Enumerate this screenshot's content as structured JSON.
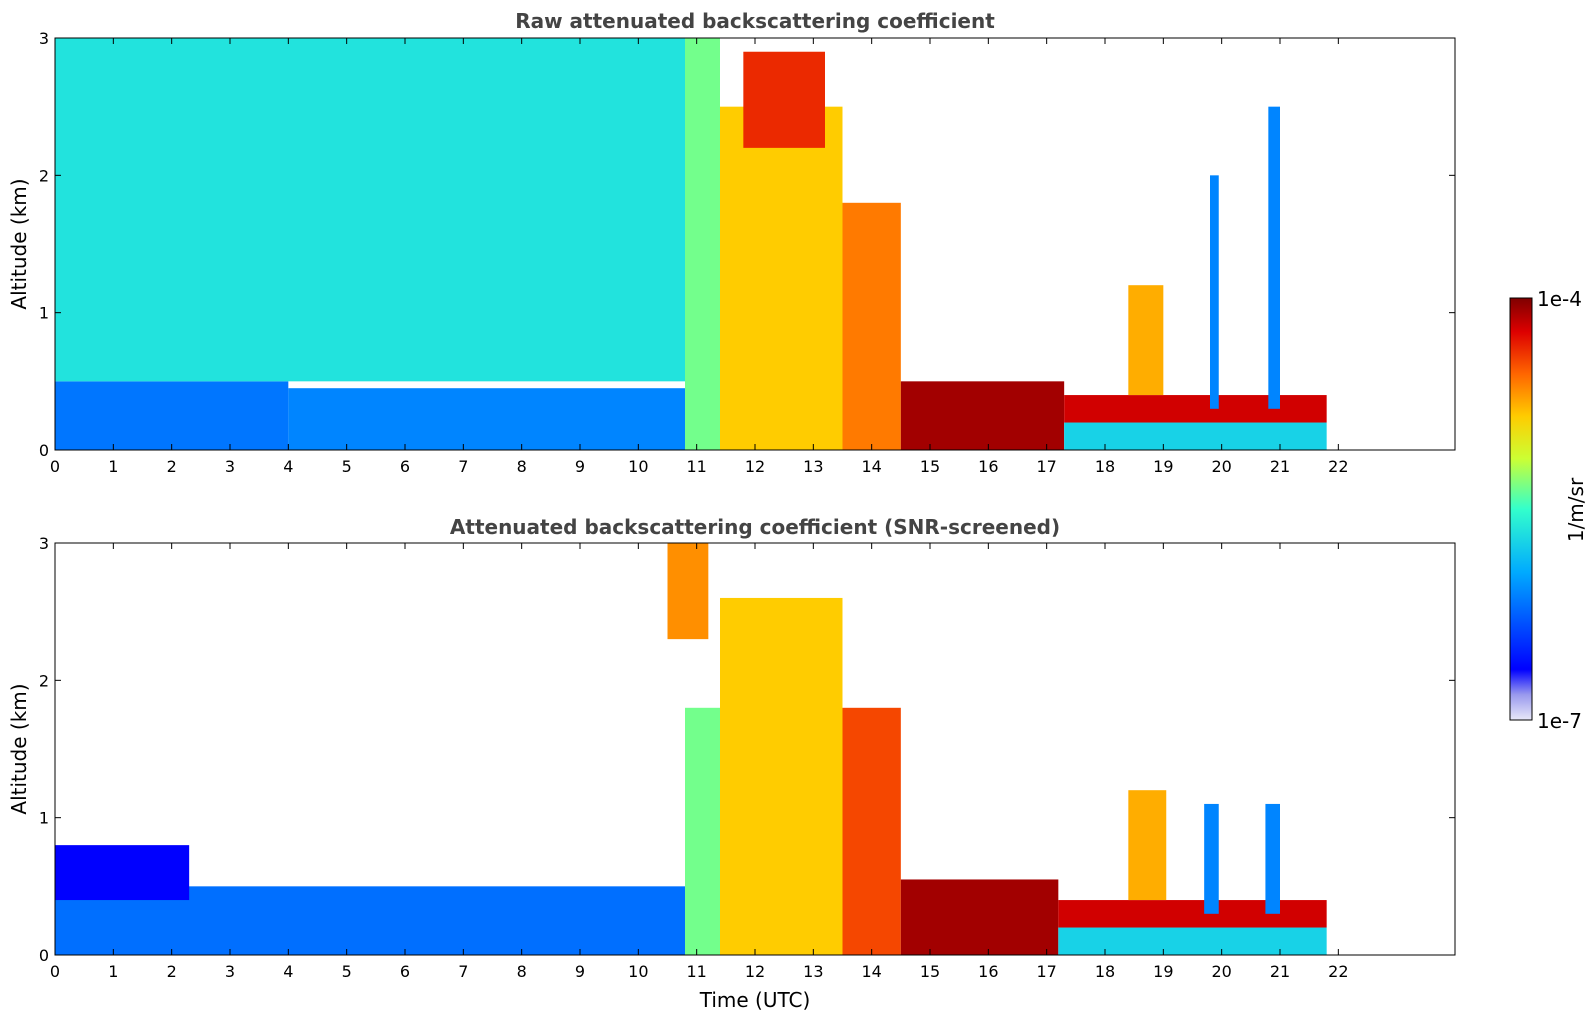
{
  "chart_data": [
    {
      "type": "heatmap",
      "title": "Raw attenuated backscattering coefficient",
      "xlabel": "",
      "ylabel": "Altitude (km)",
      "xlim": [
        0,
        24
      ],
      "ylim": [
        0,
        3
      ],
      "x_ticks": [
        "0",
        "1",
        "2",
        "3",
        "4",
        "5",
        "6",
        "7",
        "8",
        "9",
        "10",
        "11",
        "12",
        "13",
        "14",
        "15",
        "16",
        "17",
        "18",
        "19",
        "20",
        "21",
        "22"
      ],
      "y_ticks": [
        "0",
        "1",
        "2",
        "3"
      ],
      "x_tick_values": [
        0,
        1,
        2,
        3,
        4,
        5,
        6,
        7,
        8,
        9,
        10,
        11,
        12,
        13,
        14,
        15,
        16,
        17,
        18,
        19,
        20,
        21,
        22
      ],
      "y_tick_values": [
        0,
        1,
        2,
        3
      ],
      "data_end_hour": 21.8,
      "features": [
        {
          "t0": 0.0,
          "t1": 4.0,
          "z0": 0.0,
          "z1": 0.5,
          "level": 0.28
        },
        {
          "t0": 4.0,
          "t1": 10.8,
          "z0": 0.0,
          "z1": 0.45,
          "level": 0.3
        },
        {
          "t0": 0.0,
          "t1": 10.8,
          "z0": 0.5,
          "z1": 3.0,
          "level": 0.45
        },
        {
          "t0": 10.8,
          "t1": 11.4,
          "z0": 0.0,
          "z1": 3.0,
          "level": 0.55
        },
        {
          "t0": 11.4,
          "t1": 13.5,
          "z0": 0.0,
          "z1": 2.5,
          "level": 0.72
        },
        {
          "t0": 11.8,
          "t1": 13.2,
          "z0": 2.2,
          "z1": 2.9,
          "level": 0.88
        },
        {
          "t0": 13.5,
          "t1": 14.5,
          "z0": 0.0,
          "z1": 1.8,
          "level": 0.8
        },
        {
          "t0": 14.5,
          "t1": 17.3,
          "z0": 0.0,
          "z1": 0.5,
          "level": 0.97
        },
        {
          "t0": 17.3,
          "t1": 21.8,
          "z0": 0.0,
          "z1": 0.2,
          "level": 0.42
        },
        {
          "t0": 17.3,
          "t1": 21.8,
          "z0": 0.2,
          "z1": 0.4,
          "level": 0.93
        },
        {
          "t0": 18.4,
          "t1": 19.0,
          "z0": 0.4,
          "z1": 1.2,
          "level": 0.75
        },
        {
          "t0": 19.8,
          "t1": 19.95,
          "z0": 0.3,
          "z1": 2.0,
          "level": 0.3
        },
        {
          "t0": 20.8,
          "t1": 21.0,
          "z0": 0.3,
          "z1": 2.5,
          "level": 0.3
        }
      ]
    },
    {
      "type": "heatmap",
      "title": "Attenuated backscattering coefficient (SNR-screened)",
      "xlabel": "Time (UTC)",
      "ylabel": "Altitude (km)",
      "xlim": [
        0,
        24
      ],
      "ylim": [
        0,
        3
      ],
      "x_ticks": [
        "0",
        "1",
        "2",
        "3",
        "4",
        "5",
        "6",
        "7",
        "8",
        "9",
        "10",
        "11",
        "12",
        "13",
        "14",
        "15",
        "16",
        "17",
        "18",
        "19",
        "20",
        "21",
        "22"
      ],
      "y_ticks": [
        "0",
        "1",
        "2",
        "3"
      ],
      "x_tick_values": [
        0,
        1,
        2,
        3,
        4,
        5,
        6,
        7,
        8,
        9,
        10,
        11,
        12,
        13,
        14,
        15,
        16,
        17,
        18,
        19,
        20,
        21,
        22
      ],
      "y_tick_values": [
        0,
        1,
        2,
        3
      ],
      "data_end_hour": 21.8,
      "features": [
        {
          "t0": 0.0,
          "t1": 10.8,
          "z0": 0.0,
          "z1": 0.5,
          "level": 0.27
        },
        {
          "t0": 0.0,
          "t1": 2.3,
          "z0": 0.4,
          "z1": 0.8,
          "level": 0.12
        },
        {
          "t0": 10.8,
          "t1": 11.4,
          "z0": 0.0,
          "z1": 1.8,
          "level": 0.55
        },
        {
          "t0": 11.4,
          "t1": 13.5,
          "z0": 0.0,
          "z1": 2.6,
          "level": 0.72
        },
        {
          "t0": 10.5,
          "t1": 11.2,
          "z0": 2.3,
          "z1": 3.0,
          "level": 0.78
        },
        {
          "t0": 13.5,
          "t1": 14.5,
          "z0": 0.0,
          "z1": 1.8,
          "level": 0.85
        },
        {
          "t0": 14.5,
          "t1": 17.2,
          "z0": 0.0,
          "z1": 0.55,
          "level": 0.97
        },
        {
          "t0": 17.2,
          "t1": 21.8,
          "z0": 0.0,
          "z1": 0.2,
          "level": 0.42
        },
        {
          "t0": 17.2,
          "t1": 21.8,
          "z0": 0.2,
          "z1": 0.4,
          "level": 0.93
        },
        {
          "t0": 18.4,
          "t1": 19.05,
          "z0": 0.4,
          "z1": 1.2,
          "level": 0.75
        },
        {
          "t0": 19.7,
          "t1": 19.95,
          "z0": 0.3,
          "z1": 1.1,
          "level": 0.3
        },
        {
          "t0": 20.75,
          "t1": 21.0,
          "z0": 0.3,
          "z1": 1.1,
          "level": 0.3
        }
      ]
    }
  ],
  "colorbar": {
    "label": "1/m/sr",
    "max_label": "1e-4",
    "min_label": "1e-7",
    "scale": "log",
    "range": [
      1e-07,
      0.0001
    ],
    "colormap": "jet"
  }
}
